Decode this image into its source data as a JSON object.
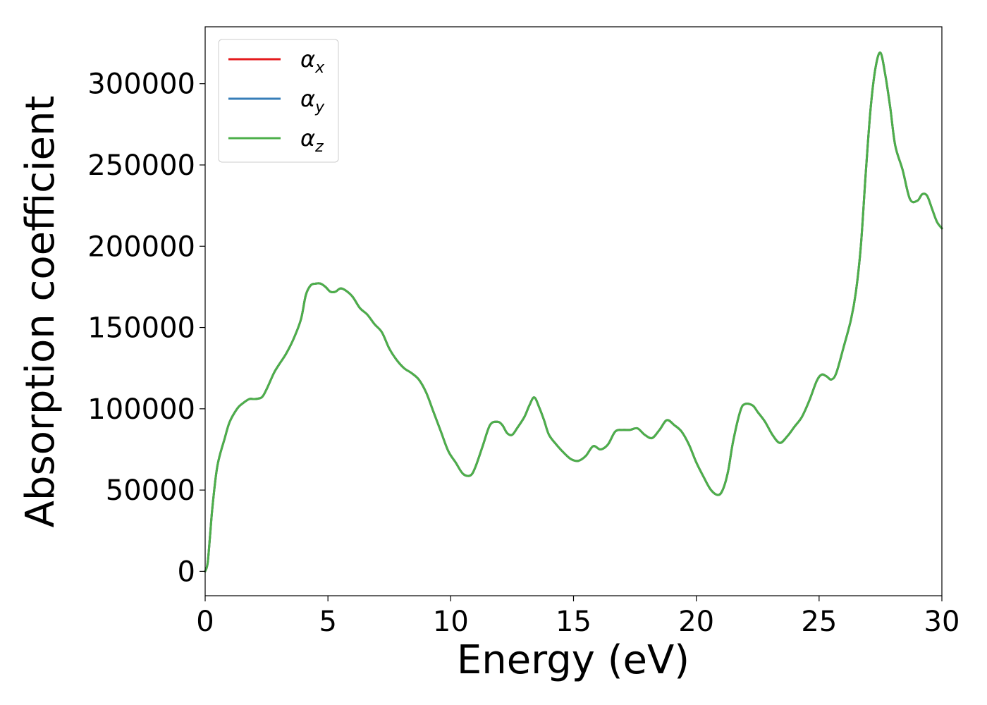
{
  "chart_data": {
    "type": "line",
    "title": "",
    "xlabel": "Energy (eV)",
    "ylabel": "Absorption coefficient",
    "xlim": [
      0,
      30
    ],
    "ylim": [
      -15000,
      335000
    ],
    "xticks": [
      0,
      5,
      10,
      15,
      20,
      25,
      30
    ],
    "yticks": [
      0,
      50000,
      100000,
      150000,
      200000,
      250000,
      300000
    ],
    "xtick_labels": [
      "0",
      "5",
      "10",
      "15",
      "20",
      "25",
      "30"
    ],
    "ytick_labels": [
      "0",
      "50000",
      "100000",
      "150000",
      "200000",
      "250000",
      "300000"
    ],
    "grid": false,
    "legend_position": "top-left",
    "x": [
      0,
      0.1,
      0.2,
      0.3,
      0.5,
      0.8,
      1.0,
      1.3,
      1.5,
      1.8,
      2.0,
      2.3,
      2.5,
      2.8,
      3.0,
      3.3,
      3.6,
      3.9,
      4.1,
      4.3,
      4.5,
      4.7,
      4.9,
      5.1,
      5.3,
      5.5,
      5.7,
      6.0,
      6.3,
      6.6,
      6.9,
      7.2,
      7.5,
      7.8,
      8.1,
      8.4,
      8.7,
      9.0,
      9.3,
      9.6,
      9.9,
      10.2,
      10.5,
      10.8,
      11.0,
      11.3,
      11.6,
      11.9,
      12.1,
      12.3,
      12.5,
      12.7,
      13.0,
      13.2,
      13.4,
      13.6,
      13.8,
      14.0,
      14.3,
      14.6,
      14.9,
      15.2,
      15.5,
      15.8,
      16.1,
      16.4,
      16.7,
      17.0,
      17.3,
      17.6,
      17.9,
      18.2,
      18.5,
      18.8,
      19.1,
      19.4,
      19.7,
      20.0,
      20.3,
      20.6,
      20.9,
      21.1,
      21.3,
      21.5,
      21.8,
      22.0,
      22.3,
      22.5,
      22.8,
      23.1,
      23.4,
      23.7,
      24.0,
      24.3,
      24.6,
      24.9,
      25.1,
      25.3,
      25.5,
      25.7,
      26.0,
      26.3,
      26.5,
      26.7,
      26.9,
      27.1,
      27.3,
      27.5,
      27.7,
      27.9,
      28.1,
      28.4,
      28.7,
      29.0,
      29.2,
      29.4,
      29.6,
      29.8,
      30.0
    ],
    "series": [
      {
        "name": "αx",
        "label_base": "α",
        "label_sub": "x",
        "color": "#e41a1c",
        "values": [
          0,
          5000,
          22000,
          40000,
          65000,
          82000,
          92000,
          100000,
          103000,
          106000,
          106000,
          107000,
          112000,
          122000,
          127000,
          134000,
          143000,
          155000,
          170000,
          176000,
          177000,
          177000,
          175000,
          172000,
          172000,
          174000,
          173000,
          169000,
          162000,
          158000,
          152000,
          147000,
          137000,
          130000,
          125000,
          122000,
          118000,
          110000,
          98000,
          86000,
          74000,
          67000,
          60000,
          59000,
          64000,
          77000,
          90000,
          92000,
          90000,
          85000,
          84000,
          88000,
          95000,
          102000,
          107000,
          101000,
          93000,
          84000,
          78000,
          73000,
          69000,
          68000,
          71000,
          77000,
          75000,
          78000,
          86000,
          87000,
          87000,
          88000,
          84000,
          82000,
          87000,
          93000,
          90000,
          86000,
          78000,
          67000,
          58000,
          50000,
          47000,
          51000,
          62000,
          80000,
          99000,
          103000,
          102000,
          98000,
          92000,
          84000,
          79000,
          83000,
          89000,
          95000,
          105000,
          117000,
          121000,
          120000,
          118000,
          122000,
          138000,
          155000,
          172000,
          200000,
          245000,
          285000,
          310000,
          319000,
          305000,
          285000,
          262000,
          247000,
          229000,
          228000,
          232000,
          231000,
          223000,
          215000,
          211000
        ]
      },
      {
        "name": "αy",
        "label_base": "α",
        "label_sub": "y",
        "color": "#377eb8",
        "values": [
          0,
          5000,
          22000,
          40000,
          65000,
          82000,
          92000,
          100000,
          103000,
          106000,
          106000,
          107000,
          112000,
          122000,
          127000,
          134000,
          143000,
          155000,
          170000,
          176000,
          177000,
          177000,
          175000,
          172000,
          172000,
          174000,
          173000,
          169000,
          162000,
          158000,
          152000,
          147000,
          137000,
          130000,
          125000,
          122000,
          118000,
          110000,
          98000,
          86000,
          74000,
          67000,
          60000,
          59000,
          64000,
          77000,
          90000,
          92000,
          90000,
          85000,
          84000,
          88000,
          95000,
          102000,
          107000,
          101000,
          93000,
          84000,
          78000,
          73000,
          69000,
          68000,
          71000,
          77000,
          75000,
          78000,
          86000,
          87000,
          87000,
          88000,
          84000,
          82000,
          87000,
          93000,
          90000,
          86000,
          78000,
          67000,
          58000,
          50000,
          47000,
          51000,
          62000,
          80000,
          99000,
          103000,
          102000,
          98000,
          92000,
          84000,
          79000,
          83000,
          89000,
          95000,
          105000,
          117000,
          121000,
          120000,
          118000,
          122000,
          138000,
          155000,
          172000,
          200000,
          245000,
          285000,
          310000,
          319000,
          305000,
          285000,
          262000,
          247000,
          229000,
          228000,
          232000,
          231000,
          223000,
          215000,
          211000
        ]
      },
      {
        "name": "αz",
        "label_base": "α",
        "label_sub": "z",
        "color": "#4daf4a",
        "values": [
          0,
          5000,
          22000,
          40000,
          65000,
          82000,
          92000,
          100000,
          103000,
          106000,
          106000,
          107000,
          112000,
          122000,
          127000,
          134000,
          143000,
          155000,
          170000,
          176000,
          177000,
          177000,
          175000,
          172000,
          172000,
          174000,
          173000,
          169000,
          162000,
          158000,
          152000,
          147000,
          137000,
          130000,
          125000,
          122000,
          118000,
          110000,
          98000,
          86000,
          74000,
          67000,
          60000,
          59000,
          64000,
          77000,
          90000,
          92000,
          90000,
          85000,
          84000,
          88000,
          95000,
          102000,
          107000,
          101000,
          93000,
          84000,
          78000,
          73000,
          69000,
          68000,
          71000,
          77000,
          75000,
          78000,
          86000,
          87000,
          87000,
          88000,
          84000,
          82000,
          87000,
          93000,
          90000,
          86000,
          78000,
          67000,
          58000,
          50000,
          47000,
          51000,
          62000,
          80000,
          99000,
          103000,
          102000,
          98000,
          92000,
          84000,
          79000,
          83000,
          89000,
          95000,
          105000,
          117000,
          121000,
          120000,
          118000,
          122000,
          138000,
          155000,
          172000,
          200000,
          245000,
          285000,
          310000,
          319000,
          305000,
          285000,
          262000,
          247000,
          229000,
          228000,
          232000,
          231000,
          223000,
          215000,
          211000
        ]
      }
    ]
  }
}
